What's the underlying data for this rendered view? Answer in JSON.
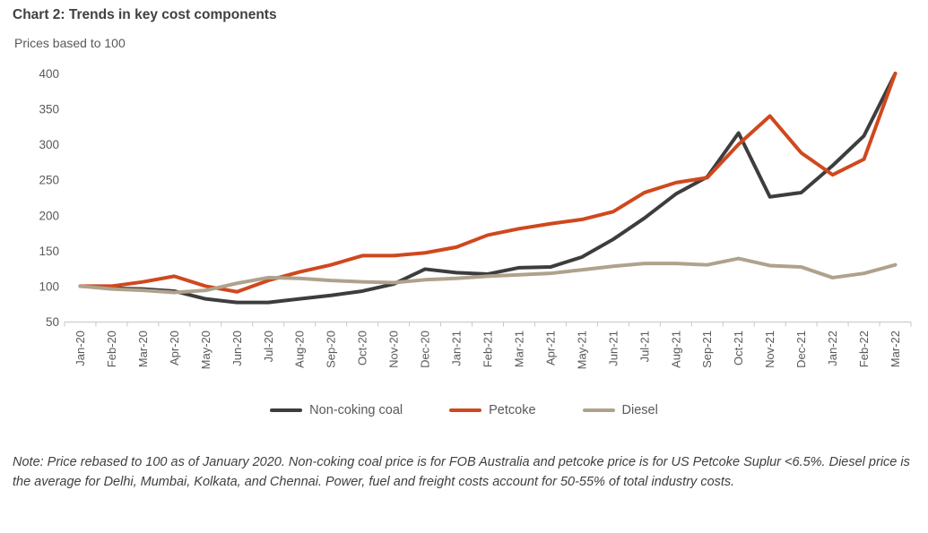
{
  "header": {
    "title": "Chart 2: Trends in key cost components",
    "subtitle": "Prices based to 100"
  },
  "note": "Note: Price rebased to 100 as of January 2020. Non-coking coal price is for FOB Australia and petcoke price is for US Petcoke Suplur <6.5%. Diesel price is the average for Delhi, Mumbai, Kolkata, and Chennai. Power, fuel and freight costs account for 50-55% of total industry costs.",
  "chart_data": {
    "type": "line",
    "title": "Chart 2: Trends in key cost components",
    "subtitle": "Prices based to 100",
    "xlabel": "",
    "ylabel": "Prices based to 100",
    "ylim": [
      50,
      400
    ],
    "y_ticks": [
      50,
      100,
      150,
      200,
      250,
      300,
      350,
      400
    ],
    "grid": false,
    "legend_position": "bottom",
    "axis_color": "#c6c6c6",
    "categories": [
      "Jan-20",
      "Feb-20",
      "Mar-20",
      "Apr-20",
      "May-20",
      "Jun-20",
      "Jul-20",
      "Aug-20",
      "Sep-20",
      "Oct-20",
      "Nov-20",
      "Dec-20",
      "Jan-21",
      "Feb-21",
      "Mar-21",
      "Apr-21",
      "May-21",
      "Jun-21",
      "Jul-21",
      "Aug-21",
      "Sep-21",
      "Oct-21",
      "Nov-21",
      "Dec-21",
      "Jan-22",
      "Feb-22",
      "Mar-22"
    ],
    "series": [
      {
        "name": "Non-coking coal",
        "color": "#3d3d3d",
        "values": [
          100,
          97,
          96,
          93,
          82,
          77,
          77,
          82,
          87,
          93,
          103,
          124,
          119,
          117,
          126,
          127,
          141,
          166,
          196,
          230,
          254,
          316,
          226,
          232,
          270,
          312,
          400
        ]
      },
      {
        "name": "Petcoke",
        "color": "#d0481e",
        "values": [
          100,
          100,
          106,
          114,
          100,
          92,
          108,
          120,
          130,
          143,
          143,
          147,
          155,
          172,
          181,
          188,
          194,
          205,
          232,
          246,
          253,
          300,
          340,
          288,
          257,
          279,
          400
        ]
      },
      {
        "name": "Diesel",
        "color": "#afa28c",
        "values": [
          100,
          96,
          94,
          91,
          94,
          104,
          112,
          111,
          108,
          106,
          105,
          109,
          111,
          114,
          116,
          118,
          123,
          128,
          132,
          132,
          130,
          139,
          129,
          127,
          112,
          118,
          130
        ]
      }
    ]
  }
}
